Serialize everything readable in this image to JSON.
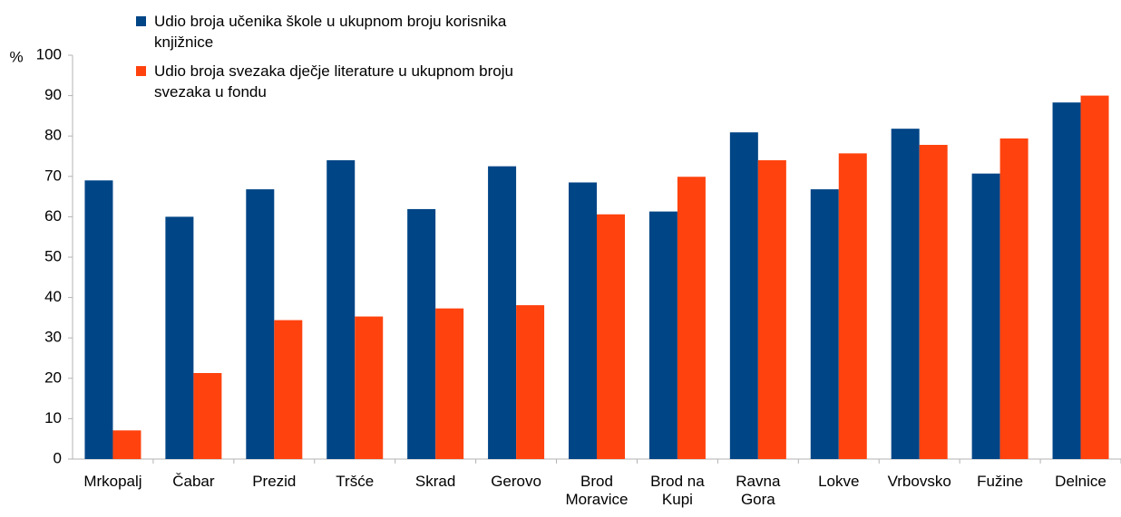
{
  "chart_data": {
    "type": "bar",
    "y_label": "%",
    "categories": [
      "Mrkopalj",
      "Čabar",
      "Prezid",
      "Tršće",
      "Skrad",
      "Gerovo",
      "Brod Moravice",
      "Brod na Kupi",
      "Ravna Gora",
      "Lokve",
      "Vrbovsko",
      "Fužine",
      "Delnice"
    ],
    "series": [
      {
        "name": "Udio broja učenika škole u ukupnom broju korisnika knjižnice",
        "color": "#004586",
        "values": [
          69,
          60,
          66.8,
          74,
          61.9,
          72.5,
          68.5,
          61.3,
          80.9,
          66.8,
          81.8,
          70.7,
          88.3
        ]
      },
      {
        "name": "Udio broja svezaka dječje literature u ukupnom broju svezaka u fondu",
        "color": "#ff420e",
        "values": [
          7.1,
          21.3,
          34.4,
          35.3,
          37.3,
          38.1,
          60.6,
          69.9,
          74,
          75.7,
          77.8,
          79.4,
          90
        ]
      }
    ],
    "ylim": [
      0,
      100
    ],
    "yticks": [
      0,
      10,
      20,
      30,
      40,
      50,
      60,
      70,
      80,
      90,
      100
    ],
    "legend": "top-left"
  }
}
